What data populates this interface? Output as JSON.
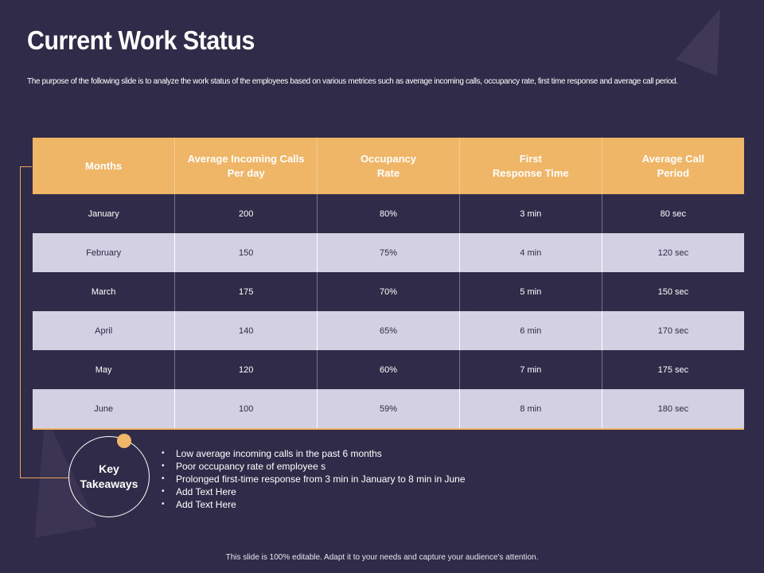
{
  "slide": {
    "title": "Current Work Status",
    "subtitle": "The purpose of the following slide is to analyze the work status of the employees based on various metrices such as average incoming calls, occupancy rate, first time response and average call period.",
    "footer": "This slide is 100% editable.  Adapt it to your needs and capture your audience's attention."
  },
  "table": {
    "headers": [
      [
        "Months"
      ],
      [
        "Average Incoming Calls",
        "Per day"
      ],
      [
        "Occupancy",
        "Rate"
      ],
      [
        "First",
        "Response Time"
      ],
      [
        "Average Call",
        "Period"
      ]
    ],
    "rows": [
      [
        "January",
        "200",
        "80%",
        "3 min",
        "80 sec"
      ],
      [
        "February",
        "150",
        "75%",
        "4 min",
        "120 sec"
      ],
      [
        "March",
        "175",
        "70%",
        "5 min",
        "150 sec"
      ],
      [
        "April",
        "140",
        "65%",
        "6 min",
        "170 sec"
      ],
      [
        "May",
        "120",
        "60%",
        "7 min",
        "175 sec"
      ],
      [
        "June",
        "100",
        "59%",
        "8 min",
        "180 sec"
      ]
    ]
  },
  "takeaways": {
    "label_line1": "Key",
    "label_line2": "Takeaways",
    "items": [
      "Low average incoming calls in the past 6 months",
      "Poor occupancy rate of employee s",
      "Prolonged first-time response from 3 min in January to 8 min in June",
      "Add Text Here",
      "Add Text Here"
    ]
  },
  "colors": {
    "background": "#312b4a",
    "accent": "#efb667",
    "row_alt": "#d4d0e3"
  }
}
